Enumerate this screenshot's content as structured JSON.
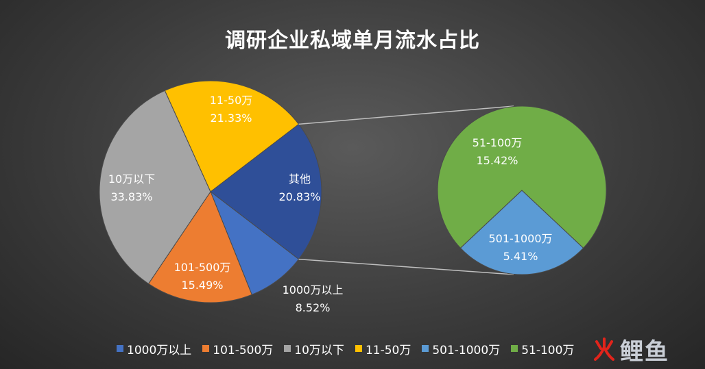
{
  "chart_data": {
    "type": "pie",
    "title": "调研企业私域单月流水占比",
    "main_pie": [
      {
        "label": "其他",
        "value": 20.83,
        "color": "#2f4f98",
        "display": "20.83%"
      },
      {
        "label": "1000万以上",
        "value": 8.52,
        "color": "#4472c4",
        "display": "8.52%"
      },
      {
        "label": "101-500万",
        "value": 15.49,
        "color": "#ed7d31",
        "display": "15.49%"
      },
      {
        "label": "10万以下",
        "value": 33.83,
        "color": "#a5a5a5",
        "display": "33.83%"
      },
      {
        "label": "11-50万",
        "value": 21.33,
        "color": "#ffc000",
        "display": "21.33%"
      }
    ],
    "secondary_pie": [
      {
        "label": "501-1000万",
        "value": 5.41,
        "color": "#5b9bd5",
        "display": "5.41%"
      },
      {
        "label": "51-100万",
        "value": 15.42,
        "color": "#70ad47",
        "display": "15.42%"
      }
    ],
    "legend": [
      {
        "label": "1000万以上",
        "color": "#4472c4"
      },
      {
        "label": "101-500万",
        "color": "#ed7d31"
      },
      {
        "label": "10万以下",
        "color": "#a5a5a5"
      },
      {
        "label": "11-50万",
        "color": "#ffc000"
      },
      {
        "label": "501-1000万",
        "color": "#5b9bd5"
      },
      {
        "label": "51-100万",
        "color": "#70ad47"
      }
    ],
    "legend_position": "bottom"
  },
  "watermark": {
    "text": "鲤鱼",
    "icon": "fire-icon"
  }
}
